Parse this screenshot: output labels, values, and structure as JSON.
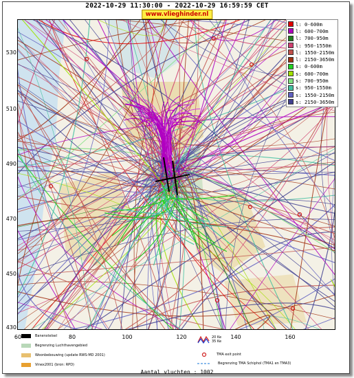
{
  "header": {
    "title": "2022-10-29 11:30:00 - 2022-10-29 16:59:59 CET",
    "site": "www.vlieghinder.nl"
  },
  "axes": {
    "y_ticks": [
      "530",
      "510",
      "490",
      "470",
      "450",
      "430"
    ],
    "x_ticks": [
      "60",
      "80",
      "100",
      "120",
      "140",
      "160"
    ]
  },
  "legend": [
    {
      "label": "l: 0-600m",
      "color": "#e00000"
    },
    {
      "label": "l: 600-700m",
      "color": "#b000c0"
    },
    {
      "label": "l: 700-950m",
      "color": "#208020"
    },
    {
      "label": "l: 950-1550m",
      "color": "#d04070"
    },
    {
      "label": "l: 1550-2150m",
      "color": "#c0504a"
    },
    {
      "label": "l: 2150-3650m",
      "color": "#a03010"
    },
    {
      "label": "s: 0-600m",
      "color": "#20d020"
    },
    {
      "label": "s: 600-700m",
      "color": "#a0e000"
    },
    {
      "label": "s: 700-950m",
      "color": "#80e080"
    },
    {
      "label": "s: 950-1550m",
      "color": "#40c0a0"
    },
    {
      "label": "s: 1550-2150m",
      "color": "#6060c0"
    },
    {
      "label": "s: 2150-3650m",
      "color": "#404090"
    }
  ],
  "key": [
    {
      "label": "Banenstelsel",
      "color": "#000000"
    },
    {
      "label": "Begrenzing Luchthavengebied",
      "color": "#b8d8b8"
    },
    {
      "label": "Woonbebouwing (update RWS-MD 2001)",
      "color": "#e8c070"
    },
    {
      "label": "Vinex2001 (bron: RPD)",
      "color": "#e8a030"
    },
    {
      "label": "20 Ke",
      "color": "#d02020"
    },
    {
      "label": "35 Ke",
      "color": "#2040d0"
    },
    {
      "label": "TMA exit point",
      "color": "#d02020"
    },
    {
      "label": "Begrenzing TMA Schiphol  (TMA1 en TMA3)",
      "color": "#4090e0"
    }
  ],
  "footer": {
    "count": "Aantal vluchten : 1002"
  }
}
